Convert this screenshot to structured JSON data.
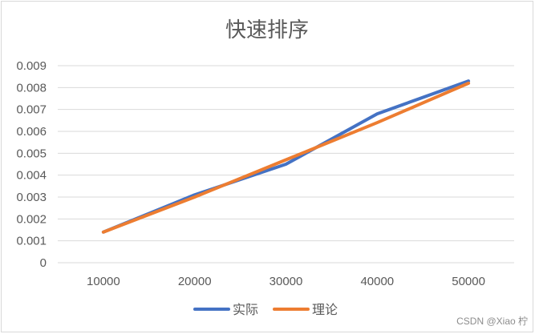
{
  "chart_data": {
    "type": "line",
    "title": "快速排序",
    "xlabel": "",
    "ylabel": "",
    "categories": [
      "10000",
      "20000",
      "30000",
      "40000",
      "50000"
    ],
    "series": [
      {
        "name": "实际",
        "color": "#4472c4",
        "values": [
          0.0014,
          0.0031,
          0.0045,
          0.0068,
          0.0083
        ]
      },
      {
        "name": "理论",
        "color": "#ed7d31",
        "values": [
          0.0014,
          0.003,
          0.0047,
          0.0064,
          0.0082
        ]
      }
    ],
    "ylim": [
      0,
      0.009
    ],
    "yticks": [
      "0",
      "0.001",
      "0.002",
      "0.003",
      "0.004",
      "0.005",
      "0.006",
      "0.007",
      "0.008",
      "0.009"
    ],
    "grid": true,
    "legend_position": "bottom"
  },
  "watermark": "CSDN @Xiao 柠"
}
